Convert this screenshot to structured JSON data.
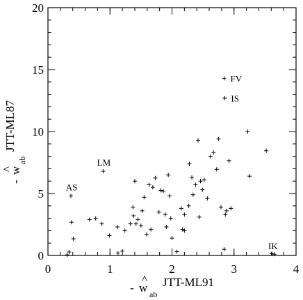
{
  "chart_data": {
    "type": "scatter",
    "title": "",
    "xlabel": {
      "prefix": "- ",
      "hat": "^",
      "base": "w",
      "sub": "ab",
      "sup": "JTT-ML91"
    },
    "ylabel": {
      "prefix": "- ",
      "hat": "^",
      "base": "w",
      "sub": "ab",
      "sup": "JTT-ML87"
    },
    "xlim": [
      0,
      4
    ],
    "ylim": [
      0,
      20
    ],
    "x_ticks": [
      0,
      1,
      2,
      3,
      4
    ],
    "y_ticks": [
      0,
      5,
      10,
      15,
      20
    ],
    "x_tick_labels": [
      "0",
      "1",
      "2",
      "3",
      "4"
    ],
    "y_tick_labels": [
      "0",
      "5",
      "10",
      "15",
      "20"
    ],
    "grid": false,
    "marker": "+",
    "labeled_points": [
      {
        "label": "FV",
        "x": 2.84,
        "y": 14.3
      },
      {
        "label": "IS",
        "x": 2.85,
        "y": 12.7
      },
      {
        "label": "LM",
        "x": 0.89,
        "y": 6.8
      },
      {
        "label": "AS",
        "x": 0.37,
        "y": 4.8
      },
      {
        "label": "IK",
        "x": 3.65,
        "y": 0.1
      }
    ],
    "points": [
      [
        0.31,
        0.05
      ],
      [
        0.34,
        0.28
      ],
      [
        0.38,
        2.68
      ],
      [
        0.41,
        1.35
      ],
      [
        0.67,
        2.9
      ],
      [
        0.77,
        3.0
      ],
      [
        0.87,
        2.55
      ],
      [
        0.99,
        1.6
      ],
      [
        1.12,
        2.3
      ],
      [
        1.13,
        0.2
      ],
      [
        1.2,
        0.35
      ],
      [
        1.24,
        2.0
      ],
      [
        1.33,
        2.55
      ],
      [
        1.37,
        3.9
      ],
      [
        1.38,
        3.2
      ],
      [
        1.4,
        6.0
      ],
      [
        1.42,
        2.55
      ],
      [
        1.45,
        2.9
      ],
      [
        1.5,
        2.4
      ],
      [
        1.52,
        3.6
      ],
      [
        1.55,
        4.7
      ],
      [
        1.59,
        1.7
      ],
      [
        1.63,
        5.7
      ],
      [
        1.66,
        2.1
      ],
      [
        1.69,
        5.5
      ],
      [
        1.73,
        6.25
      ],
      [
        1.79,
        3.5
      ],
      [
        1.82,
        5.25
      ],
      [
        1.86,
        5.2
      ],
      [
        1.89,
        3.3
      ],
      [
        1.91,
        2.3
      ],
      [
        1.94,
        6.5
      ],
      [
        1.96,
        4.8
      ],
      [
        1.98,
        3.0
      ],
      [
        2.0,
        1.4
      ],
      [
        2.08,
        0.3
      ],
      [
        2.15,
        3.8
      ],
      [
        2.17,
        2.1
      ],
      [
        2.2,
        2.0
      ],
      [
        2.2,
        3.3
      ],
      [
        2.27,
        4.0
      ],
      [
        2.28,
        7.4
      ],
      [
        2.32,
        6.3
      ],
      [
        2.34,
        4.9
      ],
      [
        2.38,
        5.7
      ],
      [
        2.42,
        9.3
      ],
      [
        2.44,
        3.1
      ],
      [
        2.46,
        6.0
      ],
      [
        2.49,
        5.3
      ],
      [
        2.52,
        6.1
      ],
      [
        2.57,
        4.6
      ],
      [
        2.62,
        8.0
      ],
      [
        2.67,
        8.3
      ],
      [
        2.72,
        6.95
      ],
      [
        2.75,
        9.4
      ],
      [
        2.79,
        3.9
      ],
      [
        2.84,
        0.5
      ],
      [
        2.86,
        3.3
      ],
      [
        2.88,
        3.6
      ],
      [
        2.92,
        7.65
      ],
      [
        2.95,
        3.8
      ],
      [
        3.22,
        10.0
      ],
      [
        3.25,
        6.4
      ],
      [
        3.52,
        8.45
      ],
      [
        3.61,
        0.15
      ]
    ]
  }
}
